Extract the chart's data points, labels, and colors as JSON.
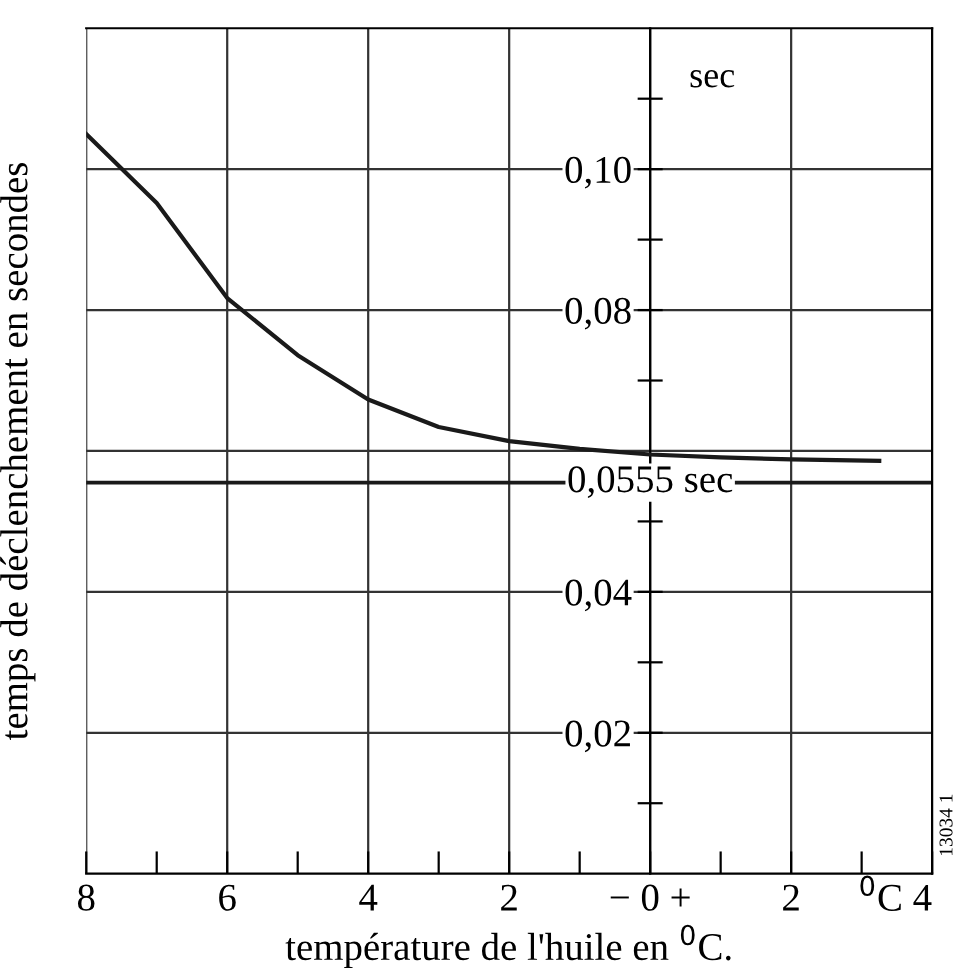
{
  "chart_data": {
    "type": "line",
    "xlabel": "température de l'huile en $^{0}$C.",
    "ylabel": "temps de déclenchement en secondes",
    "x": [
      -8,
      -7,
      -6,
      -5,
      -4,
      -3,
      -2,
      -1,
      0,
      1,
      2,
      3.25
    ],
    "series": [
      {
        "color": "#1a1a1a",
        "values": [
          0.105,
          0.0952,
          0.0817,
          0.0736,
          0.0673,
          0.0634,
          0.0614,
          0.0603,
          0.0595,
          0.0591,
          0.0588,
          0.0586
        ]
      }
    ],
    "xlim": [
      -8,
      4
    ],
    "ylim": [
      0,
      0.12
    ],
    "xticks": [
      {
        "value": -8,
        "label": "8"
      },
      {
        "value": -7,
        "label": null
      },
      {
        "value": -6,
        "label": "6"
      },
      {
        "value": -5,
        "label": null
      },
      {
        "value": -4,
        "label": "4"
      },
      {
        "value": -3,
        "label": null
      },
      {
        "value": -2,
        "label": "2"
      },
      {
        "value": -1,
        "label": null
      },
      {
        "value": 0,
        "label": "− 0 +"
      },
      {
        "value": 1,
        "label": null
      },
      {
        "value": 2,
        "label": "2"
      },
      {
        "value": 3,
        "label": null
      },
      {
        "value": 4,
        "label": "$^{0}$C 4"
      }
    ],
    "yticks": [
      {
        "value": 0.01,
        "label": null
      },
      {
        "value": 0.02,
        "label": "0,02"
      },
      {
        "value": 0.03,
        "label": null
      },
      {
        "value": 0.04,
        "label": "0,04"
      },
      {
        "value": 0.05,
        "label": null
      },
      {
        "value": 0.07,
        "label": null
      },
      {
        "value": 0.08,
        "label": "0,08"
      },
      {
        "value": 0.09,
        "label": null
      },
      {
        "value": 0.1,
        "label": "0,10"
      },
      {
        "value": 0.11,
        "label": null
      }
    ],
    "ref_lines": [
      {
        "axis": "y",
        "value": 0.0555,
        "label": "0,0555 sec",
        "color": "#1a1a1a"
      },
      {
        "axis": "y",
        "value": 0.06,
        "color": "#333333"
      }
    ],
    "grid": true,
    "marker": "none",
    "line_style": "solid",
    "annotations": [
      "sec",
      "13034 1"
    ]
  }
}
